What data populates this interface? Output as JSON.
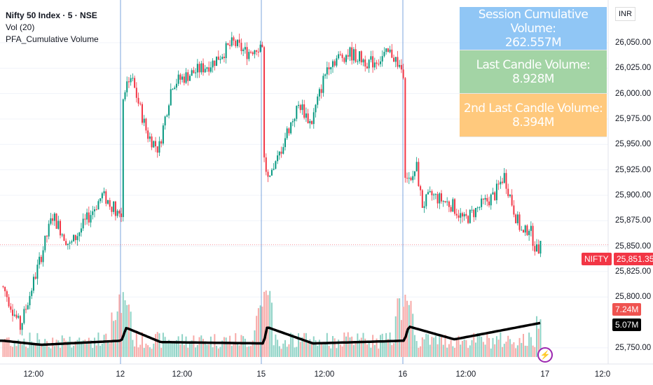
{
  "legend": {
    "title": "Nifty 50 Index · 5 · NSE",
    "vol": "Vol (20)",
    "indicator": "PFA_Cumulative Volume"
  },
  "currency": "INR",
  "table": [
    {
      "label": "Session Cumulative Volume:",
      "value": "262.557M",
      "color": "#90c6f5"
    },
    {
      "label": "Last Candle Volume:",
      "value": "8.928M",
      "color": "#a3d4a5"
    },
    {
      "label": "2nd Last Candle Volume:",
      "value": "8.394M",
      "color": "#ffc97d"
    }
  ],
  "price_tag": {
    "symbol": "NIFTY",
    "value": "25,851.35",
    "color": "#f23645"
  },
  "vol_tag": "7.24M",
  "ma_tag": "5.07M",
  "colors": {
    "up": "#089981",
    "down": "#f23645",
    "vol_up": "#8fd3c6",
    "vol_down": "#f7a9a7",
    "session_line": "#5b8fd6"
  },
  "chart_data": {
    "type": "candlestick",
    "y_ticks": [
      "26,050.00",
      "26,025.00",
      "26,000.00",
      "25,975.00",
      "25,950.00",
      "25,925.00",
      "25,900.00",
      "25,875.00",
      "25,850.00",
      "25,825.00",
      "25,800.00",
      "25,750.00"
    ],
    "y_tick_values": [
      26050,
      26025,
      26000,
      25975,
      25950,
      25925,
      25900,
      25875,
      25850,
      25825,
      25800,
      25750
    ],
    "x_ticks": [
      "12:00",
      "12",
      "12:00",
      "15",
      "12:00",
      "16",
      "12:00",
      "17",
      "12:0"
    ],
    "price_path": [
      [
        0,
        "10:20",
        25810
      ],
      [
        0,
        "11:05",
        25770
      ],
      [
        0,
        "12:30",
        25880
      ],
      [
        0,
        "13:15",
        25850
      ],
      [
        0,
        "14:40",
        25900
      ],
      [
        0,
        "15:30",
        25880
      ],
      [
        1,
        "09:15",
        25990
      ],
      [
        1,
        "09:40",
        26020
      ],
      [
        1,
        "10:25",
        25960
      ],
      [
        1,
        "10:55",
        25945
      ],
      [
        1,
        "11:30",
        26010
      ],
      [
        1,
        "13:15",
        26030
      ],
      [
        1,
        "14:10",
        26050
      ],
      [
        1,
        "14:45",
        26040
      ],
      [
        1,
        "15:30",
        26050
      ],
      [
        2,
        "09:15",
        25950
      ],
      [
        2,
        "09:35",
        25910
      ],
      [
        2,
        "10:20",
        25960
      ],
      [
        2,
        "10:55",
        25990
      ],
      [
        2,
        "11:25",
        25970
      ],
      [
        2,
        "12:10",
        26030
      ],
      [
        2,
        "13:05",
        26040
      ],
      [
        2,
        "14:00",
        26030
      ],
      [
        2,
        "14:55",
        26040
      ],
      [
        2,
        "15:30",
        26020
      ],
      [
        3,
        "09:15",
        25930
      ],
      [
        3,
        "09:35",
        25910
      ],
      [
        3,
        "09:50",
        25930
      ],
      [
        3,
        "10:05",
        25890
      ],
      [
        3,
        "10:30",
        25900
      ],
      [
        3,
        "11:25",
        25890
      ],
      [
        3,
        "11:55",
        25875
      ],
      [
        3,
        "12:40",
        25890
      ],
      [
        3,
        "13:15",
        25900
      ],
      [
        3,
        "13:40",
        25920
      ],
      [
        3,
        "14:10",
        25880
      ],
      [
        3,
        "14:30",
        25860
      ],
      [
        3,
        "14:45",
        25870
      ],
      [
        3,
        "15:05",
        25845
      ],
      [
        3,
        "15:20",
        25851.35
      ]
    ],
    "volume_ma_path_m": [
      [
        0,
        "10:20",
        2.4
      ],
      [
        0,
        "12:00",
        1.8
      ],
      [
        0,
        "15:30",
        2.4
      ],
      [
        1,
        "09:30",
        4.3
      ],
      [
        1,
        "11:00",
        2.2
      ],
      [
        1,
        "15:30",
        2.0
      ],
      [
        2,
        "09:30",
        4.4
      ],
      [
        2,
        "11:30",
        2.0
      ],
      [
        2,
        "15:30",
        2.4
      ],
      [
        3,
        "09:30",
        4.5
      ],
      [
        3,
        "11:30",
        2.6
      ],
      [
        3,
        "15:20",
        5.07
      ]
    ]
  }
}
